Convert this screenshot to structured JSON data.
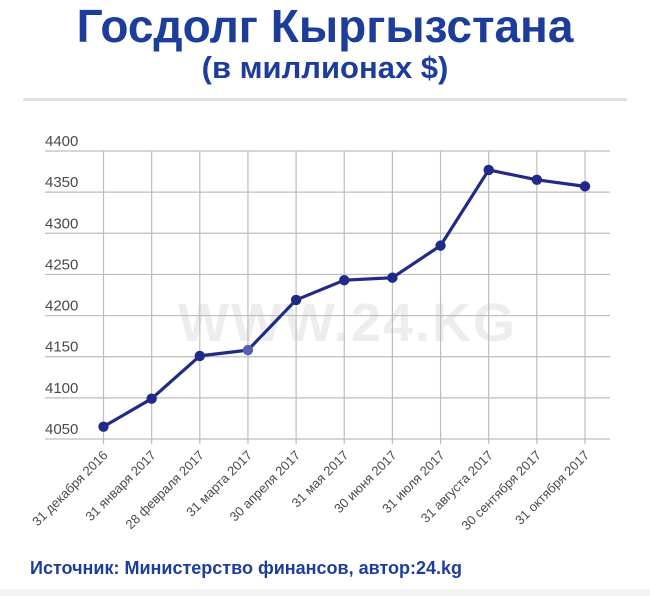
{
  "header": {
    "title": "Госдолг Кыргызстана",
    "subtitle": "(в миллионах $)"
  },
  "watermark": "WWW.24.KG",
  "source_line": "Источник: Министерство финансов, автор:24.kg",
  "colors": {
    "brand_blue": "#1d3d9b",
    "line": "#222a88",
    "dot": "#222a88",
    "highlight_dot": "#5560b4",
    "grid": "#bdbdbd",
    "axis_text": "#4a4a4a",
    "watermark": "#ededed",
    "divider": "#e0e0e0"
  },
  "chart_data": {
    "type": "line",
    "title": "Госдолг Кыргызстана (в миллионах $)",
    "xlabel": "",
    "ylabel": "",
    "categories": [
      "31 декабря 2016",
      "31 января 2017",
      "28 февраля 2017",
      "31 марта 2017",
      "30 апреля 2017",
      "31 мая 2017",
      "30 июня 2017",
      "31 июля 2017",
      "31 августа 2017",
      "30 сентября 2017",
      "31 октября 2017"
    ],
    "values": [
      4065,
      4099,
      4151,
      4158,
      4219,
      4243,
      4246,
      4285,
      4377,
      4365,
      4357
    ],
    "ylim": [
      4050,
      4400
    ],
    "ytick_step": 50,
    "grid": true,
    "legend": false,
    "highlight_index": 3
  }
}
